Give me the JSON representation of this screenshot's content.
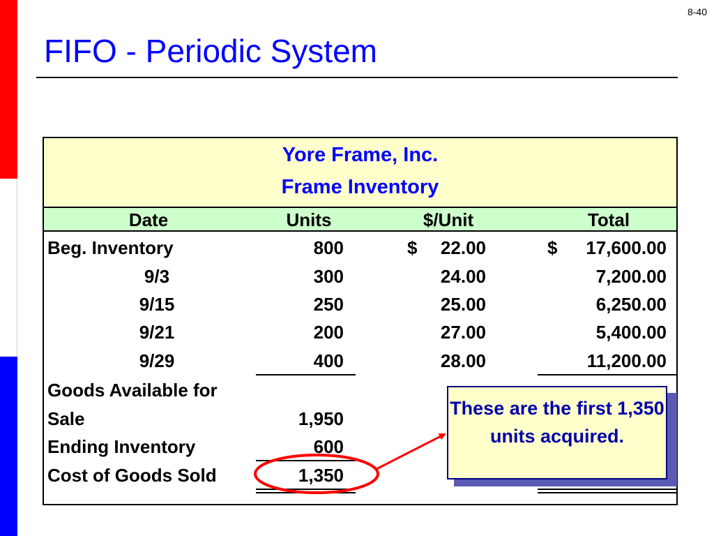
{
  "page_number": "8-40",
  "title": "FIFO - Periodic System",
  "table": {
    "company": "Yore Frame, Inc.",
    "subtitle": "Frame Inventory",
    "headers": [
      "Date",
      "Units",
      "$/Unit",
      "Total"
    ],
    "rows": [
      {
        "date": "Beg. Inventory",
        "units": "800",
        "unit_currency": "$",
        "unit_cost": "22.00",
        "total_currency": "$",
        "total": "17,600.00"
      },
      {
        "date": "9/3",
        "units": "300",
        "unit_currency": "",
        "unit_cost": "24.00",
        "total_currency": "",
        "total": "7,200.00"
      },
      {
        "date": "9/15",
        "units": "250",
        "unit_currency": "",
        "unit_cost": "25.00",
        "total_currency": "",
        "total": "6,250.00"
      },
      {
        "date": "9/21",
        "units": "200",
        "unit_currency": "",
        "unit_cost": "27.00",
        "total_currency": "",
        "total": "5,400.00"
      },
      {
        "date": "9/29",
        "units": "400",
        "unit_currency": "",
        "unit_cost": "28.00",
        "total_currency": "",
        "total": "11,200.00"
      }
    ],
    "goods_available_label_1": "Goods Available for",
    "goods_available_label_2": "Sale",
    "goods_available_units": "1,950",
    "ending_inventory_label": "Ending Inventory",
    "ending_inventory_units": "600",
    "cogs_label": "Cost of Goods Sold",
    "cogs_units": "1,350"
  },
  "callout": {
    "text": "These are the first 1,350 units acquired."
  },
  "colors": {
    "title": "#0000ff",
    "table_header_bg": "#ffffcc",
    "column_header_bg": "#ccffcc",
    "highlight_ellipse": "#ff0000",
    "callout_text": "#0000aa"
  }
}
